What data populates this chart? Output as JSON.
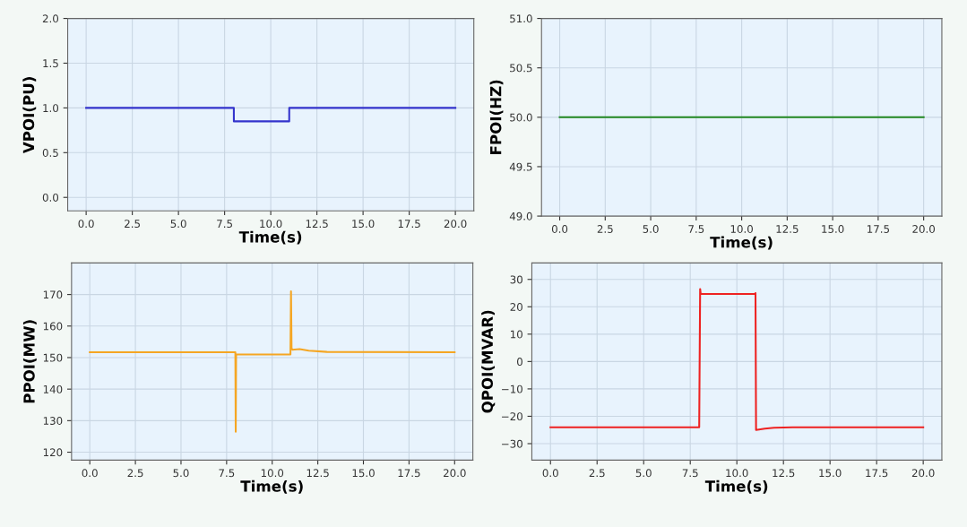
{
  "chart_data": [
    {
      "type": "line",
      "xlabel": "Time(s)",
      "ylabel": "VPOI(PU)",
      "xlim": [
        -1,
        21
      ],
      "ylim": [
        -0.15,
        2.0
      ],
      "xticks": [
        {
          "value": 0,
          "label": "0.0"
        },
        2.5,
        {
          "value": 5,
          "label": "5.0"
        },
        7.5,
        {
          "value": 10,
          "label": "10.0"
        },
        12.5,
        {
          "value": 15,
          "label": "15.0"
        },
        17.5,
        {
          "value": 20,
          "label": "20.0"
        }
      ],
      "yticks": [
        {
          "value": 0,
          "label": "0.0"
        },
        0.5,
        {
          "value": 1,
          "label": "1.0"
        },
        1.5,
        {
          "value": 2,
          "label": "2.0"
        }
      ],
      "grid": true,
      "legend": false,
      "series": [
        {
          "color": "#3333cc",
          "x": [
            0,
            8,
            8.001,
            11,
            11.001,
            20
          ],
          "values": [
            1.0,
            1.0,
            0.85,
            0.85,
            1.0,
            1.0
          ]
        }
      ]
    },
    {
      "type": "line",
      "xlabel": "Time(s)",
      "ylabel": "FPOI(HZ)",
      "xlim": [
        -1,
        21
      ],
      "ylim": [
        49.0,
        51.0
      ],
      "xticks": [
        {
          "value": 0,
          "label": "0.0"
        },
        2.5,
        {
          "value": 5,
          "label": "5.0"
        },
        7.5,
        {
          "value": 10,
          "label": "10.0"
        },
        12.5,
        {
          "value": 15,
          "label": "15.0"
        },
        17.5,
        {
          "value": 20,
          "label": "20.0"
        }
      ],
      "yticks": [
        {
          "value": 49,
          "label": "49.0"
        },
        49.5,
        {
          "value": 50,
          "label": "50.0"
        },
        50.5,
        {
          "value": 51,
          "label": "51.0"
        }
      ],
      "grid": true,
      "legend": false,
      "series": [
        {
          "color": "#228822",
          "x": [
            0,
            20
          ],
          "values": [
            50.0,
            50.0
          ]
        }
      ]
    },
    {
      "type": "line",
      "xlabel": "Time(s)",
      "ylabel": "PPOI(MW)",
      "xlim": [
        -1,
        21
      ],
      "ylim": [
        117.5,
        180
      ],
      "xticks": [
        {
          "value": 0,
          "label": "0.0"
        },
        2.5,
        {
          "value": 5,
          "label": "5.0"
        },
        7.5,
        {
          "value": 10,
          "label": "10.0"
        },
        12.5,
        {
          "value": 15,
          "label": "15.0"
        },
        17.5,
        {
          "value": 20,
          "label": "20.0"
        }
      ],
      "yticks": [
        120,
        130,
        140,
        150,
        160,
        170
      ],
      "grid": true,
      "legend": false,
      "series": [
        {
          "color": "#f5a623",
          "x": [
            0,
            7.98,
            8.0,
            8.02,
            8.1,
            11.0,
            11.03,
            11.06,
            11.1,
            11.5,
            12.0,
            13.0,
            20.0
          ],
          "values": [
            151.7,
            151.7,
            126.5,
            151.0,
            151.0,
            151.0,
            171.0,
            153.0,
            152.5,
            152.7,
            152.2,
            151.8,
            151.7
          ]
        }
      ]
    },
    {
      "type": "line",
      "xlabel": "Time(s)",
      "ylabel": "QPOI(MVAR)",
      "xlim": [
        -1,
        21
      ],
      "ylim": [
        -36,
        36
      ],
      "xticks": [
        {
          "value": 0,
          "label": "0.0"
        },
        2.5,
        {
          "value": 5,
          "label": "5.0"
        },
        7.5,
        {
          "value": 10,
          "label": "10.0"
        },
        12.5,
        {
          "value": 15,
          "label": "15.0"
        },
        17.5,
        {
          "value": 20,
          "label": "20.0"
        }
      ],
      "yticks": [
        {
          "value": -30,
          "label": "−30"
        },
        {
          "value": -20,
          "label": "−20"
        },
        {
          "value": -10,
          "label": "−10"
        },
        0,
        10,
        20,
        30
      ],
      "grid": true,
      "legend": false,
      "series": [
        {
          "color": "#ee2222",
          "x": [
            0,
            7.98,
            8.03,
            8.06,
            8.1,
            10.98,
            11.0,
            11.03,
            11.5,
            12.0,
            13.0,
            20.0
          ],
          "values": [
            -24.0,
            -24.0,
            26.5,
            24.7,
            24.7,
            24.7,
            25.0,
            -25.0,
            -24.5,
            -24.2,
            -24.0,
            -24.0
          ]
        }
      ]
    }
  ]
}
